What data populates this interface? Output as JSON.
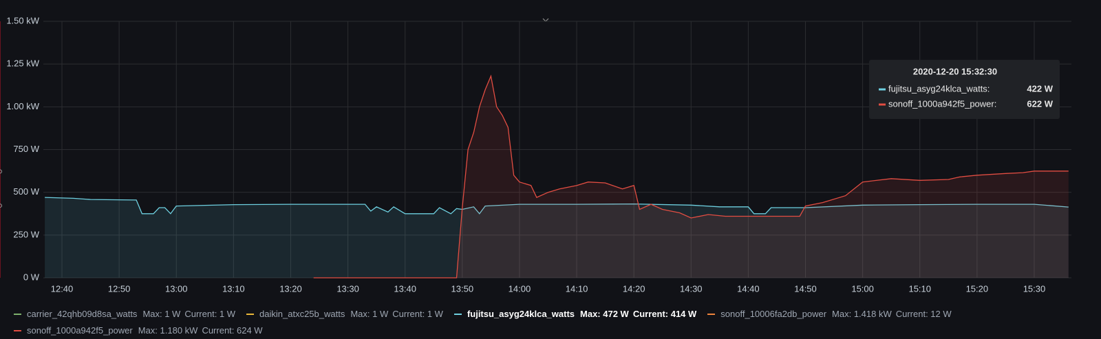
{
  "chart_data": {
    "type": "line",
    "xlim": [
      "12:36:45",
      "15:36:30"
    ],
    "xticks": [
      "12:40",
      "12:50",
      "13:00",
      "13:10",
      "13:20",
      "13:30",
      "13:40",
      "13:50",
      "14:00",
      "14:10",
      "14:20",
      "14:30",
      "14:40",
      "14:50",
      "15:00",
      "15:10",
      "15:20",
      "15:30"
    ],
    "ylim": [
      0,
      1500
    ],
    "yticks": [
      {
        "value": 0,
        "label": "0 W"
      },
      {
        "value": 250,
        "label": "250 W"
      },
      {
        "value": 500,
        "label": "500 W"
      },
      {
        "value": 750,
        "label": "750 W"
      },
      {
        "value": 1000,
        "label": "1.00 kW"
      },
      {
        "value": 1250,
        "label": "1.25 kW"
      },
      {
        "value": 1500,
        "label": "1.50 kW"
      }
    ],
    "grid": true,
    "series": [
      {
        "name": "carrier_42qhb09d8sa_watts",
        "color": "#7eb26d",
        "max": {
          "value": 1,
          "label": "Max: 1 W"
        },
        "current": {
          "value": 1,
          "label": "Current: 1 W"
        }
      },
      {
        "name": "daikin_atxc25b_watts",
        "color": "#eab839",
        "max": {
          "value": 1,
          "label": "Max: 1 W"
        },
        "current": {
          "value": 1,
          "label": "Current: 1 W"
        }
      },
      {
        "name": "fujitsu_asyg24klca_watts",
        "color": "#6ed0e0",
        "highlight": true,
        "max": {
          "value": 472,
          "label": "Max: 472 W"
        },
        "current": {
          "value": 414,
          "label": "Current: 414 W"
        },
        "x": [
          "12:37",
          "12:42",
          "12:45",
          "12:53",
          "12:54",
          "12:56",
          "12:57",
          "12:58",
          "12:59",
          "13:00",
          "13:10",
          "13:20",
          "13:33",
          "13:34",
          "13:35",
          "13:37",
          "13:38",
          "13:40",
          "13:45",
          "13:46",
          "13:48",
          "13:49",
          "13:50",
          "13:52",
          "13:53",
          "13:54",
          "14:00",
          "14:10",
          "14:20",
          "14:30",
          "14:35",
          "14:40",
          "14:41",
          "14:43",
          "14:44",
          "14:50",
          "15:00",
          "15:10",
          "15:20",
          "15:30",
          "15:36"
        ],
        "values": [
          470,
          465,
          458,
          455,
          375,
          375,
          410,
          410,
          375,
          420,
          428,
          430,
          430,
          390,
          415,
          385,
          415,
          375,
          375,
          410,
          375,
          405,
          400,
          415,
          375,
          420,
          430,
          430,
          432,
          425,
          415,
          415,
          375,
          375,
          410,
          410,
          425,
          428,
          430,
          430,
          414
        ]
      },
      {
        "name": "sonoff_10006fa2db_power",
        "color": "#ef843c",
        "max": {
          "value": 1418,
          "label": "Max: 1.418 kW"
        },
        "current": {
          "value": 12,
          "label": "Current: 12 W"
        }
      },
      {
        "name": "sonoff_1000a942f5_power",
        "color": "#e24d42",
        "max": {
          "value": 1180,
          "label": "Max: 1.180 kW"
        },
        "current": {
          "value": 624,
          "label": "Current: 624 W"
        },
        "x": [
          "13:24",
          "13:49",
          "13:50",
          "13:51",
          "13:52",
          "13:53",
          "13:54",
          "13:55",
          "13:56",
          "13:57",
          "13:58",
          "13:59",
          "14:00",
          "14:02",
          "14:03",
          "14:05",
          "14:07",
          "14:10",
          "14:12",
          "14:15",
          "14:18",
          "14:20",
          "14:21",
          "14:23",
          "14:25",
          "14:28",
          "14:30",
          "14:33",
          "14:36",
          "14:40",
          "14:49",
          "14:50",
          "14:53",
          "14:57",
          "15:00",
          "15:05",
          "15:10",
          "15:15",
          "15:17",
          "15:20",
          "15:25",
          "15:28",
          "15:30",
          "15:36"
        ],
        "values": [
          0,
          0,
          410,
          750,
          850,
          1000,
          1100,
          1180,
          1000,
          950,
          880,
          600,
          560,
          540,
          470,
          500,
          520,
          540,
          560,
          555,
          520,
          540,
          400,
          430,
          400,
          380,
          350,
          370,
          360,
          360,
          360,
          420,
          440,
          480,
          560,
          580,
          570,
          575,
          590,
          600,
          610,
          615,
          624,
          624
        ]
      }
    ],
    "tooltip": {
      "time": "2020-12-20 15:32:30",
      "items": [
        {
          "name": "fujitsu_asyg24klca_watts:",
          "color": "#6ed0e0",
          "value": 422,
          "value_label": "422 W"
        },
        {
          "name": "sonoff_1000a942f5_power:",
          "color": "#e24d42",
          "value": 622,
          "value_label": "622 W"
        }
      ]
    }
  }
}
